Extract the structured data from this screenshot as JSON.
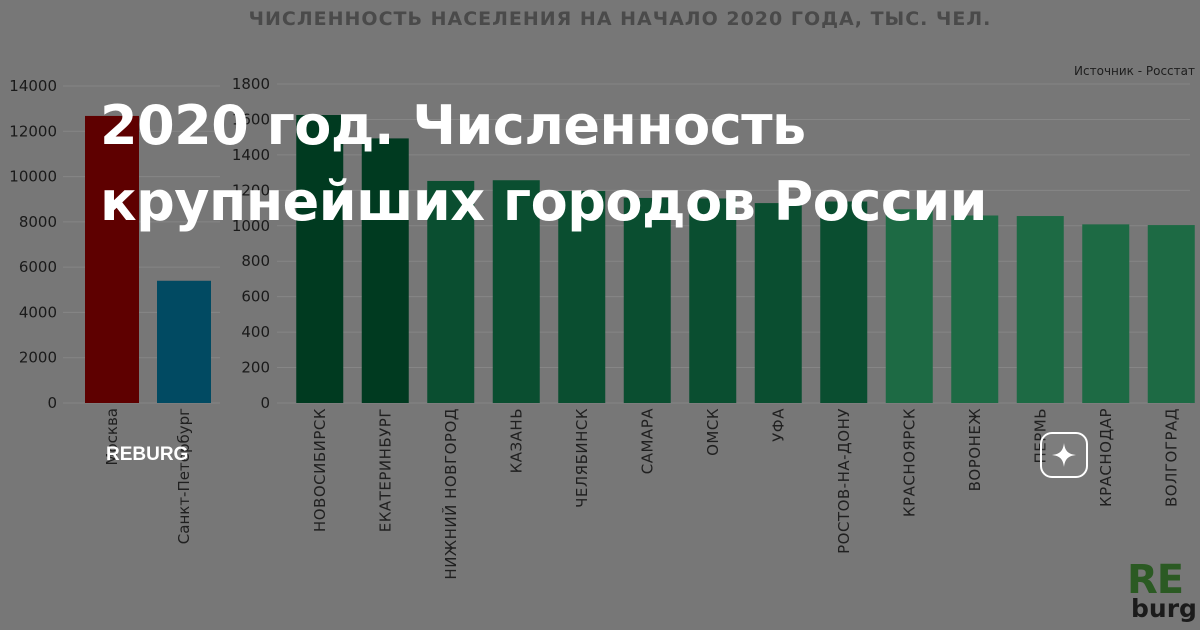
{
  "headline": {
    "line1": "2020 год. Численность",
    "line2": "крупнейших городов России"
  },
  "site_label": "REBURG",
  "spark_button": {
    "icon": "sparkle-icon"
  },
  "logo": {
    "part1": "RE",
    "part2": "burg"
  },
  "colors": {
    "moscow": "#5e0000",
    "spb": "#014a62",
    "dark_green": "#003a20",
    "mid_green": "#0a4e30",
    "light_green": "#1d6a44",
    "headline": "#ffffff",
    "logo_green": "#2b5a23"
  },
  "chart_data": [
    {
      "type": "bar",
      "title": "ЧИСЛЕННОСТЬ НАСЕЛЕНИЯ НА НАЧАЛО 2020 ГОДА, ТЫС. ЧЕЛ.",
      "source": "Источник - Росстат",
      "categories": [
        "Москва",
        "Санкт-Петербург"
      ],
      "values": [
        12678,
        5398
      ],
      "colors": [
        "#5e0000",
        "#014a62"
      ],
      "ylim": [
        0,
        14000
      ],
      "yticks": [
        0,
        2000,
        4000,
        6000,
        8000,
        10000,
        12000,
        14000
      ],
      "grid": true
    },
    {
      "type": "bar",
      "categories": [
        "НОВОСИБИРСК",
        "ЕКАТЕРИНБУРГ",
        "НИЖНИЙ НОВГОРОД",
        "КАЗАНЬ",
        "ЧЕЛЯБИНСК",
        "САМАРА",
        "ОМСК",
        "УФА",
        "РОСТОВ-НА-ДОНУ",
        "КРАСНОЯРСК",
        "ВОРОНЕЖ",
        "ПЕРМЬ",
        "КРАСНОДАР",
        "ВОЛГОГРАД"
      ],
      "values": [
        1625,
        1493,
        1253,
        1257,
        1196,
        1157,
        1154,
        1128,
        1137,
        1093,
        1058,
        1055,
        1008,
        1004
      ],
      "colors": [
        "#003a20",
        "#003a20",
        "#0a4e30",
        "#0a4e30",
        "#0a4e30",
        "#0a4e30",
        "#0a4e30",
        "#0a4e30",
        "#0a4e30",
        "#1d6a44",
        "#1d6a44",
        "#1d6a44",
        "#1d6a44",
        "#1d6a44"
      ],
      "ylim": [
        0,
        1800
      ],
      "yticks": [
        0,
        200,
        400,
        600,
        800,
        1000,
        1200,
        1400,
        1600,
        1800
      ],
      "grid": true
    }
  ]
}
